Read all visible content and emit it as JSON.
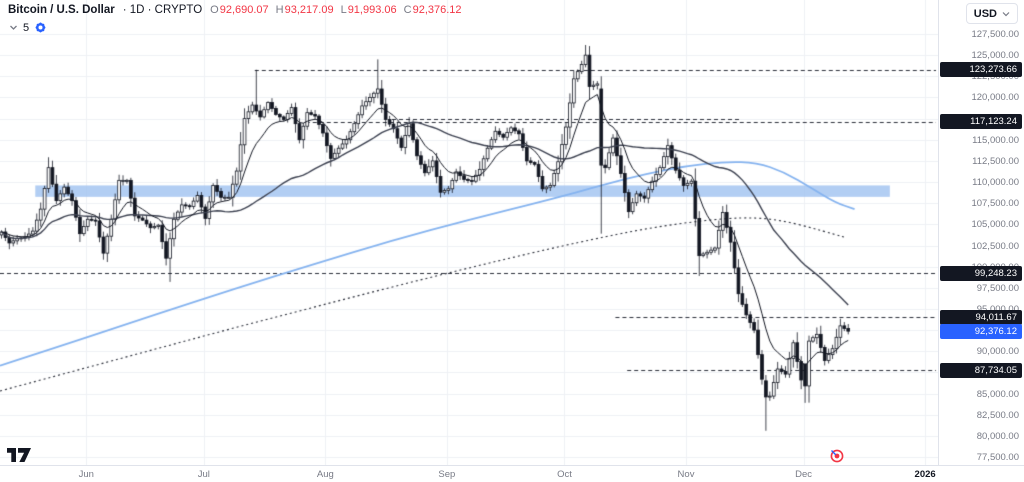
{
  "header": {
    "symbol_name": "Bitcoin / U.S. Dollar",
    "meta": "· 1D · CRYPTO",
    "ohlc": [
      {
        "label": "O",
        "value": "92,690.07"
      },
      {
        "label": "H",
        "value": "93,217.09"
      },
      {
        "label": "L",
        "value": "91,993.06"
      },
      {
        "label": "C",
        "value": "92,376.12"
      }
    ],
    "indicator_count": "5"
  },
  "top_right": {
    "currency": "USD"
  },
  "colors": {
    "accent": "#2962ff",
    "badge_dark": "#131722",
    "up": "#ffffff",
    "down": "#131722",
    "outline": "#131722",
    "grid": "#eef0f5",
    "band": "#9fc2f0",
    "level": "#2a2e39",
    "ma_blue": "#85b3ef",
    "ma_fast": "#131722",
    "ma_slow": "#3c4150",
    "axis_text": "#787b86",
    "value_down": "#f23645"
  },
  "axis": {
    "price_min": 77500,
    "price_max": 127500,
    "price_step": 2500,
    "months": [
      {
        "label": "Jun",
        "day": 22
      },
      {
        "label": "Jul",
        "day": 52
      },
      {
        "label": "Aug",
        "day": 83
      },
      {
        "label": "Sep",
        "day": 114
      },
      {
        "label": "Oct",
        "day": 144
      },
      {
        "label": "Nov",
        "day": 175
      },
      {
        "label": "Dec",
        "day": 205
      },
      {
        "label": "2026",
        "day": 236,
        "emphasis": true
      }
    ]
  },
  "price_scale": {
    "badges": [
      {
        "text": "123,273.66",
        "price": 123273.66,
        "style": "dark"
      },
      {
        "text": "117,123.24",
        "price": 117123.24,
        "style": "dark"
      },
      {
        "text": "99,248.23",
        "price": 99248.23,
        "style": "dark"
      },
      {
        "text": "94,011.67",
        "price": 94011.67,
        "style": "dark"
      },
      {
        "text": "92,376.12",
        "price": 92376.12,
        "style": "accent"
      },
      {
        "text": "87,734.05",
        "price": 87734.05,
        "style": "dark"
      }
    ]
  },
  "chart_data": {
    "type": "candlestick",
    "title": "Bitcoin / U.S. Dollar 1D CRYPTO",
    "x_unit": "day_index",
    "days_total": 216,
    "anchor_step_days": 2,
    "last_close": 92376.12,
    "anchor_closes": [
      104100,
      102800,
      103300,
      103500,
      104200,
      106800,
      111700,
      107800,
      109400,
      107800,
      103900,
      105600,
      105400,
      101600,
      105600,
      110200,
      110200,
      106000,
      105500,
      104600,
      104900,
      101000,
      105600,
      107300,
      107100,
      108400,
      105700,
      109600,
      108200,
      108200,
      111300,
      117500,
      119100,
      117700,
      119400,
      118000,
      117400,
      118800,
      115000,
      118200,
      117800,
      115800,
      112800,
      114000,
      115000,
      116900,
      119000,
      120000,
      121000,
      117400,
      116300,
      114100,
      116900,
      113100,
      111100,
      112500,
      108800,
      109200,
      111200,
      110300,
      110100,
      111500,
      114000,
      116000,
      115300,
      116400,
      115700,
      112500,
      112100,
      109200,
      109600,
      112400,
      116500,
      122200,
      123900,
      121300,
      121600,
      111700,
      115200,
      111000,
      106500,
      108600,
      108100,
      110100,
      111700,
      114300,
      111400,
      109600,
      110100,
      101300,
      101700,
      102200,
      106400,
      102900,
      96800,
      94300,
      92500,
      86700,
      84700,
      87900,
      87300,
      91000,
      86600,
      91200,
      92000,
      88900,
      90300,
      93000,
      92380
    ],
    "candle_overrides": {
      "43": {
        "low": 98200
      },
      "65": {
        "high": 123273.66
      },
      "96": {
        "high": 124500
      },
      "149": {
        "close": 125000,
        "high": 126198
      },
      "153": {
        "open": 121000,
        "close": 112000,
        "low": 103900,
        "high": 122500
      },
      "178": {
        "low": 98900
      },
      "195": {
        "open": 86500,
        "close": 84600,
        "low": 80600
      },
      "205": {
        "open": 88500,
        "close": 85900,
        "low": 83900
      },
      "216": {
        "open": 92690.07,
        "high": 93217.09,
        "low": 91993.06,
        "close": 92376.12
      }
    },
    "levels": [
      {
        "price": 123273.66,
        "from_day": 65
      },
      {
        "price": 117123.24,
        "from_day": 78
      },
      {
        "price": 117480,
        "from_day": 100,
        "to_day": 189
      },
      {
        "price": 99248.23,
        "from_day": 0
      },
      {
        "price": 94011.67,
        "from_day": 157
      },
      {
        "price": 87734.05,
        "from_day": 160
      }
    ],
    "supply_zone": {
      "day_start": 9,
      "day_end": 227,
      "price_top": 109600,
      "price_bottom": 108250
    },
    "overlays": {
      "ma_fast_len": 10,
      "ma_slow_len": 45,
      "ma_long_blue": [
        [
          0,
          88300
        ],
        [
          20,
          91300
        ],
        [
          40,
          94400
        ],
        [
          60,
          97400
        ],
        [
          80,
          100300
        ],
        [
          100,
          103100
        ],
        [
          120,
          105600
        ],
        [
          140,
          107900
        ],
        [
          155,
          109800
        ],
        [
          165,
          111000
        ],
        [
          175,
          111900
        ],
        [
          185,
          112400
        ],
        [
          193,
          112300
        ],
        [
          200,
          111200
        ],
        [
          207,
          109300
        ],
        [
          213,
          107600
        ],
        [
          218,
          106800
        ]
      ],
      "ma_long_dotted": [
        [
          0,
          85300
        ],
        [
          20,
          87800
        ],
        [
          40,
          90300
        ],
        [
          60,
          92800
        ],
        [
          80,
          95200
        ],
        [
          100,
          97600
        ],
        [
          120,
          99900
        ],
        [
          140,
          102100
        ],
        [
          155,
          103600
        ],
        [
          165,
          104500
        ],
        [
          175,
          105200
        ],
        [
          185,
          105700
        ],
        [
          193,
          105800
        ],
        [
          200,
          105400
        ],
        [
          207,
          104600
        ],
        [
          213,
          103800
        ],
        [
          216,
          103400
        ]
      ]
    }
  }
}
